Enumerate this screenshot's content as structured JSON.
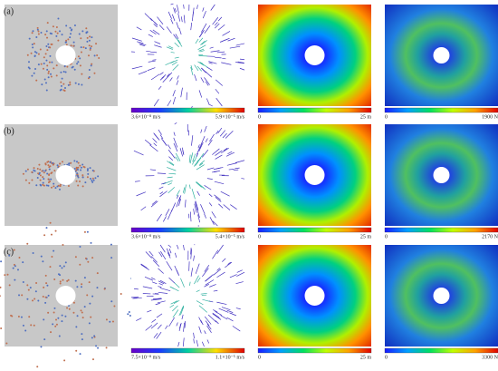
{
  "rows": [
    {
      "label": "(a)",
      "velocity": [
        "3.6×10⁻⁸ m/s",
        "5.9×10⁻⁵ m/s"
      ],
      "displacement": [
        "0",
        "25 m"
      ],
      "force": [
        "0",
        "1900 N"
      ]
    },
    {
      "label": "(b)",
      "velocity": [
        "3.6×10⁻⁸ m/s",
        "5.4×10⁻⁵ m/s"
      ],
      "displacement": [
        "0",
        "25 m"
      ],
      "force": [
        "0",
        "2170 N"
      ]
    },
    {
      "label": "(c)",
      "velocity": [
        "7.5×10⁻⁸ m/s",
        "1.1×10⁻⁵ m/s"
      ],
      "displacement": [
        "0",
        "25 m"
      ],
      "force": [
        "0",
        "3300 N"
      ]
    }
  ]
}
